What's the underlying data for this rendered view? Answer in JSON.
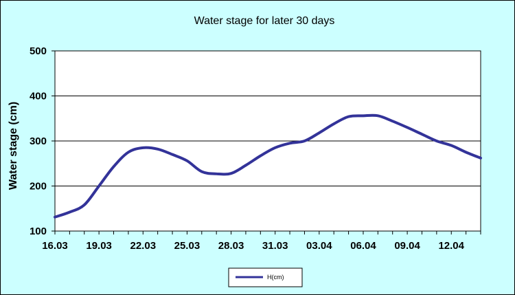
{
  "colors": {
    "chart_area_bg": "#CCFFFF",
    "plot_area_bg": "#FFFFFF",
    "series_line": "#333399",
    "gridline": "#000000",
    "border": "#000000"
  },
  "chart_data": {
    "type": "line",
    "title": "Water stage for later 30 days",
    "xlabel": "",
    "ylabel": "Water stage (cm)",
    "ylim": [
      100,
      500
    ],
    "yticks": [
      100,
      200,
      300,
      400,
      500
    ],
    "ytick_labels": [
      "100",
      "200",
      "300",
      "400",
      "500"
    ],
    "xtick_labels": [
      "16.03",
      "19.03",
      "22.03",
      "25.03",
      "28.03",
      "31.03",
      "03.04",
      "06.04",
      "09.04",
      "12.04"
    ],
    "categories": [
      "16.03",
      "17.03",
      "18.03",
      "19.03",
      "20.03",
      "21.03",
      "22.03",
      "23.03",
      "24.03",
      "25.03",
      "26.03",
      "27.03",
      "28.03",
      "29.03",
      "30.03",
      "31.03",
      "01.04",
      "02.04",
      "03.04",
      "04.04",
      "05.04",
      "06.04",
      "07.04",
      "08.04",
      "09.04",
      "10.04",
      "11.04",
      "12.04",
      "13.04",
      "14.04"
    ],
    "grid": true,
    "legend_position": "bottom",
    "series": [
      {
        "name": "H(cm)",
        "values": [
          131,
          142,
          158,
          200,
          243,
          275,
          285,
          282,
          270,
          256,
          232,
          227,
          228,
          246,
          267,
          285,
          295,
          300,
          318,
          338,
          354,
          356,
          356,
          344,
          330,
          315,
          300,
          290,
          275,
          262
        ]
      }
    ]
  }
}
